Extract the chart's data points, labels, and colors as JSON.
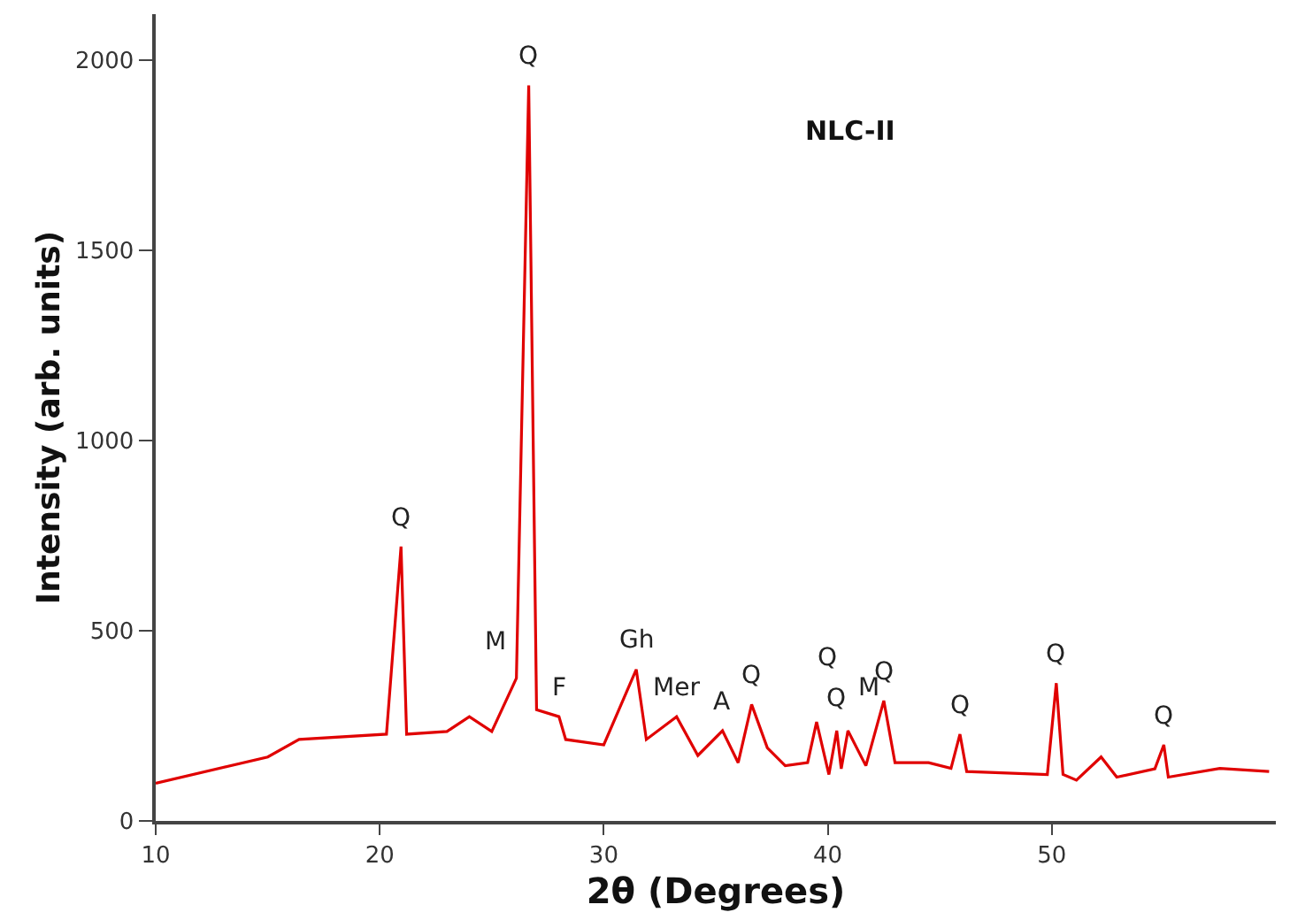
{
  "chart_data": {
    "type": "line",
    "xlabel": "2θ (Degrees)",
    "ylabel": "Intensity (arb. units)",
    "x": [
      10,
      15,
      16.4,
      20.3,
      20.95,
      21.2,
      23,
      24.0,
      25,
      26.1,
      26.65,
      27,
      28.0,
      28.3,
      30,
      31.45,
      31.9,
      33.25,
      34.2,
      35.3,
      36.0,
      36.6,
      37.3,
      38.1,
      39.1,
      39.5,
      40.05,
      40.4,
      40.6,
      40.9,
      41.7,
      42.5,
      43.0,
      44.5,
      45.5,
      45.9,
      46.2,
      49.8,
      50.2,
      50.5,
      51.1,
      52.2,
      52.9,
      54.6,
      55.0,
      55.2,
      57.5,
      59.7
    ],
    "series": [
      {
        "color": "#e00000",
        "values": [
          99,
          168,
          214,
          228,
          721,
          228,
          235,
          274,
          235,
          375,
          1933,
          292,
          274,
          214,
          200,
          398,
          214,
          274,
          172,
          237,
          153,
          306,
          192,
          145,
          153,
          260,
          122,
          237,
          137,
          237,
          145,
          316,
          153,
          153,
          138,
          228,
          130,
          122,
          362,
          122,
          107,
          168,
          115,
          137,
          200,
          115,
          138,
          130
        ]
      }
    ],
    "xlim": [
      10,
      60
    ],
    "ylim": [
      0,
      2120
    ],
    "xticks": [
      10,
      20,
      30,
      40,
      50
    ],
    "yticks": [
      0,
      500,
      1000,
      1500,
      2000
    ],
    "marker": "none",
    "line_style": "solid",
    "annotations": [
      {
        "text": "Q",
        "x": 26.65,
        "y": 1933
      },
      {
        "text": "Q",
        "x": 20.95,
        "y": 721
      },
      {
        "text": "M",
        "x": 26.1,
        "y": 375
      },
      {
        "text": "F",
        "x": 28.0,
        "y": 274
      },
      {
        "text": "Gh",
        "x": 31.45,
        "y": 398
      },
      {
        "text": "Mer",
        "x": 33.25,
        "y": 274
      },
      {
        "text": "A",
        "x": 35.3,
        "y": 237
      },
      {
        "text": "Q",
        "x": 36.6,
        "y": 306
      },
      {
        "text": "Q",
        "x": 39.5,
        "y": 260
      },
      {
        "text": "Q",
        "x": 40.4,
        "y": 237
      },
      {
        "text": "M",
        "x": 40.9,
        "y": 237
      },
      {
        "text": "Q",
        "x": 42.5,
        "y": 316
      },
      {
        "text": "Q",
        "x": 45.9,
        "y": 228
      },
      {
        "text": "Q",
        "x": 50.2,
        "y": 362
      },
      {
        "text": "Q",
        "x": 55.0,
        "y": 200
      },
      "NLC-II"
    ]
  }
}
